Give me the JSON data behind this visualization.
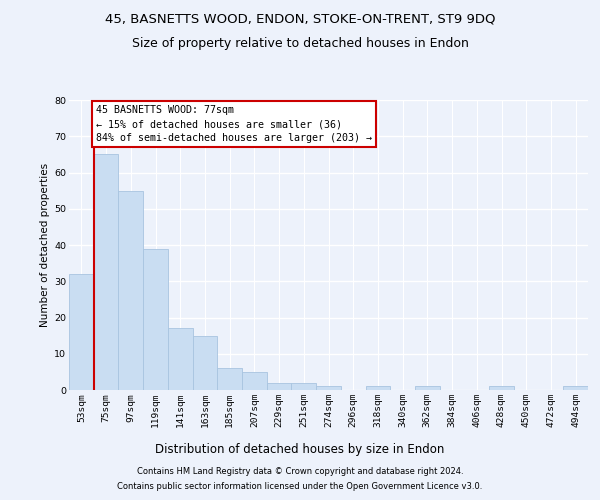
{
  "title1": "45, BASNETTS WOOD, ENDON, STOKE-ON-TRENT, ST9 9DQ",
  "title2": "Size of property relative to detached houses in Endon",
  "xlabel": "Distribution of detached houses by size in Endon",
  "ylabel": "Number of detached properties",
  "categories": [
    "53sqm",
    "75sqm",
    "97sqm",
    "119sqm",
    "141sqm",
    "163sqm",
    "185sqm",
    "207sqm",
    "229sqm",
    "251sqm",
    "274sqm",
    "296sqm",
    "318sqm",
    "340sqm",
    "362sqm",
    "384sqm",
    "406sqm",
    "428sqm",
    "450sqm",
    "472sqm",
    "494sqm"
  ],
  "values": [
    32,
    65,
    55,
    39,
    17,
    15,
    6,
    5,
    2,
    2,
    1,
    0,
    1,
    0,
    1,
    0,
    0,
    1,
    0,
    0,
    1
  ],
  "bar_color": "#c9ddf2",
  "bar_edge_color": "#a8c4e0",
  "vline_color": "#cc0000",
  "vline_x": 0.5,
  "annotation_line1": "45 BASNETTS WOOD: 77sqm",
  "annotation_line2": "← 15% of detached houses are smaller (36)",
  "annotation_line3": "84% of semi-detached houses are larger (203) →",
  "annotation_box_facecolor": "#ffffff",
  "annotation_box_edgecolor": "#cc0000",
  "ylim": [
    0,
    80
  ],
  "yticks": [
    0,
    10,
    20,
    30,
    40,
    50,
    60,
    70,
    80
  ],
  "bg_color": "#edf2fb",
  "grid_color": "#ffffff",
  "footer1": "Contains HM Land Registry data © Crown copyright and database right 2024.",
  "footer2": "Contains public sector information licensed under the Open Government Licence v3.0.",
  "title1_fontsize": 9.5,
  "title2_fontsize": 9.0,
  "ylabel_fontsize": 7.5,
  "xlabel_fontsize": 8.5,
  "tick_fontsize": 6.8,
  "footer_fontsize": 6.0,
  "annot_fontsize": 7.2
}
